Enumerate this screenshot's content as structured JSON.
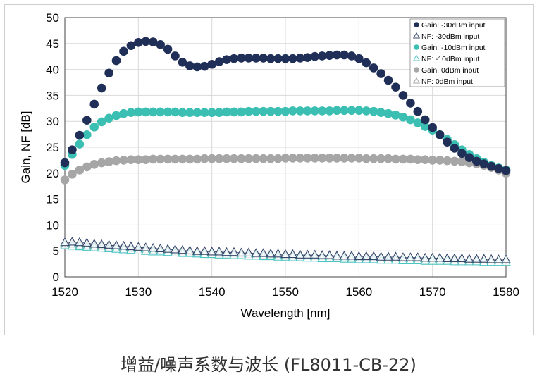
{
  "caption": "增益/噪声系数与波长 (FL8011-CB-22)",
  "chart_data": {
    "type": "scatter",
    "xlabel": "Wavelength [nm]",
    "ylabel": "Gain, NF [dB]",
    "xlim": [
      1520,
      1580
    ],
    "ylim": [
      0,
      50
    ],
    "xticks": [
      "1520",
      "1530",
      "1540",
      "1550",
      "1560",
      "1570",
      "1580"
    ],
    "yticks": [
      "0",
      "5",
      "10",
      "15",
      "20",
      "25",
      "30",
      "35",
      "40",
      "45",
      "50"
    ],
    "legend_position": "top-right",
    "series": [
      {
        "name": "Gain: -30dBm input",
        "marker": "circle",
        "color": "#1f2f57",
        "x": [
          1520,
          1521,
          1522,
          1523,
          1524,
          1525,
          1526,
          1527,
          1528,
          1529,
          1530,
          1531,
          1532,
          1533,
          1534,
          1535,
          1536,
          1537,
          1538,
          1539,
          1540,
          1541,
          1542,
          1543,
          1544,
          1545,
          1546,
          1547,
          1548,
          1549,
          1550,
          1551,
          1552,
          1553,
          1554,
          1555,
          1556,
          1557,
          1558,
          1559,
          1560,
          1561,
          1562,
          1563,
          1564,
          1565,
          1566,
          1567,
          1568,
          1569,
          1570,
          1571,
          1572,
          1573,
          1574,
          1575,
          1576,
          1577,
          1578,
          1579,
          1580
        ],
        "y": [
          22.0,
          24.5,
          27.3,
          30.2,
          33.3,
          36.4,
          39.3,
          41.7,
          43.5,
          44.6,
          45.2,
          45.4,
          45.3,
          44.8,
          43.9,
          42.6,
          41.4,
          40.7,
          40.5,
          40.6,
          41.0,
          41.5,
          41.9,
          42.1,
          42.2,
          42.2,
          42.2,
          42.2,
          42.1,
          42.1,
          42.1,
          42.1,
          42.2,
          42.3,
          42.5,
          42.6,
          42.7,
          42.8,
          42.8,
          42.6,
          42.1,
          41.3,
          40.3,
          39.2,
          37.9,
          36.6,
          35.0,
          33.5,
          31.9,
          30.3,
          28.8,
          27.4,
          26.0,
          24.8,
          23.8,
          23.0,
          22.3,
          21.8,
          21.3,
          20.9,
          20.5
        ]
      },
      {
        "name": "NF: -30dBm input",
        "marker": "triangle",
        "color": "#34466a",
        "x": [
          1520,
          1521,
          1522,
          1523,
          1524,
          1525,
          1526,
          1527,
          1528,
          1529,
          1530,
          1531,
          1532,
          1533,
          1534,
          1535,
          1536,
          1537,
          1538,
          1539,
          1540,
          1541,
          1542,
          1543,
          1544,
          1545,
          1546,
          1547,
          1548,
          1549,
          1550,
          1551,
          1552,
          1553,
          1554,
          1555,
          1556,
          1557,
          1558,
          1559,
          1560,
          1561,
          1562,
          1563,
          1564,
          1565,
          1566,
          1567,
          1568,
          1569,
          1570,
          1571,
          1572,
          1573,
          1574,
          1575,
          1576,
          1577,
          1578,
          1579,
          1580
        ],
        "y": [
          6.6,
          6.7,
          6.6,
          6.5,
          6.3,
          6.2,
          6.1,
          6.0,
          5.9,
          5.8,
          5.7,
          5.6,
          5.5,
          5.4,
          5.3,
          5.2,
          5.1,
          5.0,
          4.9,
          4.9,
          4.8,
          4.8,
          4.7,
          4.7,
          4.6,
          4.6,
          4.5,
          4.5,
          4.4,
          4.4,
          4.3,
          4.3,
          4.2,
          4.2,
          4.2,
          4.1,
          4.1,
          4.0,
          4.0,
          4.0,
          3.9,
          3.9,
          3.9,
          3.8,
          3.8,
          3.8,
          3.7,
          3.7,
          3.7,
          3.6,
          3.6,
          3.6,
          3.5,
          3.5,
          3.5,
          3.4,
          3.4,
          3.4,
          3.3,
          3.3,
          3.3
        ]
      },
      {
        "name": "Gain: -10dBm input",
        "marker": "circle",
        "color": "#3cbfb3",
        "x": [
          1520,
          1521,
          1522,
          1523,
          1524,
          1525,
          1526,
          1527,
          1528,
          1529,
          1530,
          1531,
          1532,
          1533,
          1534,
          1535,
          1536,
          1537,
          1538,
          1539,
          1540,
          1541,
          1542,
          1543,
          1544,
          1545,
          1546,
          1547,
          1548,
          1549,
          1550,
          1551,
          1552,
          1553,
          1554,
          1555,
          1556,
          1557,
          1558,
          1559,
          1560,
          1561,
          1562,
          1563,
          1564,
          1565,
          1566,
          1567,
          1568,
          1569,
          1570,
          1571,
          1572,
          1573,
          1574,
          1575,
          1576,
          1577,
          1578,
          1579,
          1580
        ],
        "y": [
          21.5,
          23.6,
          25.6,
          27.4,
          28.9,
          29.9,
          30.6,
          31.1,
          31.5,
          31.7,
          31.8,
          31.8,
          31.8,
          31.8,
          31.8,
          31.8,
          31.7,
          31.7,
          31.7,
          31.7,
          31.7,
          31.7,
          31.8,
          31.8,
          31.8,
          31.9,
          31.9,
          31.9,
          31.9,
          31.9,
          31.9,
          32.0,
          32.0,
          32.0,
          32.0,
          32.0,
          32.0,
          32.1,
          32.1,
          32.1,
          32.1,
          32.0,
          31.9,
          31.7,
          31.5,
          31.2,
          30.8,
          30.3,
          29.7,
          29.0,
          28.3,
          27.4,
          26.5,
          25.5,
          24.5,
          23.6,
          22.8,
          22.1,
          21.5,
          21.0,
          20.6
        ]
      },
      {
        "name": "NF: -10dBm input",
        "marker": "triangle",
        "color": "#4cc4c0",
        "x": [
          1520,
          1521,
          1522,
          1523,
          1524,
          1525,
          1526,
          1527,
          1528,
          1529,
          1530,
          1531,
          1532,
          1533,
          1534,
          1535,
          1536,
          1537,
          1538,
          1539,
          1540,
          1541,
          1542,
          1543,
          1544,
          1545,
          1546,
          1547,
          1548,
          1549,
          1550,
          1551,
          1552,
          1553,
          1554,
          1555,
          1556,
          1557,
          1558,
          1559,
          1560,
          1561,
          1562,
          1563,
          1564,
          1565,
          1566,
          1567,
          1568,
          1569,
          1570,
          1571,
          1572,
          1573,
          1574,
          1575,
          1576,
          1577,
          1578,
          1579,
          1580
        ],
        "y": [
          6.0,
          5.9,
          5.8,
          5.7,
          5.6,
          5.5,
          5.4,
          5.3,
          5.2,
          5.1,
          5.0,
          4.9,
          4.8,
          4.8,
          4.7,
          4.6,
          4.5,
          4.5,
          4.4,
          4.3,
          4.3,
          4.2,
          4.2,
          4.1,
          4.1,
          4.0,
          4.0,
          3.9,
          3.9,
          3.8,
          3.8,
          3.7,
          3.7,
          3.6,
          3.6,
          3.5,
          3.5,
          3.5,
          3.4,
          3.4,
          3.3,
          3.3,
          3.3,
          3.2,
          3.2,
          3.2,
          3.1,
          3.1,
          3.1,
          3.0,
          3.0,
          3.0,
          3.0,
          2.9,
          2.9,
          2.9,
          2.9,
          2.8,
          2.8,
          2.8,
          2.8
        ]
      },
      {
        "name": "Gain: 0dBm input",
        "marker": "circle",
        "color": "#a6a6a6",
        "x": [
          1520,
          1521,
          1522,
          1523,
          1524,
          1525,
          1526,
          1527,
          1528,
          1529,
          1530,
          1531,
          1532,
          1533,
          1534,
          1535,
          1536,
          1537,
          1538,
          1539,
          1540,
          1541,
          1542,
          1543,
          1544,
          1545,
          1546,
          1547,
          1548,
          1549,
          1550,
          1551,
          1552,
          1553,
          1554,
          1555,
          1556,
          1557,
          1558,
          1559,
          1560,
          1561,
          1562,
          1563,
          1564,
          1565,
          1566,
          1567,
          1568,
          1569,
          1570,
          1571,
          1572,
          1573,
          1574,
          1575,
          1576,
          1577,
          1578,
          1579,
          1580
        ],
        "y": [
          18.7,
          19.8,
          20.6,
          21.2,
          21.7,
          22.0,
          22.2,
          22.4,
          22.5,
          22.6,
          22.6,
          22.6,
          22.7,
          22.7,
          22.7,
          22.7,
          22.7,
          22.7,
          22.7,
          22.8,
          22.8,
          22.8,
          22.8,
          22.8,
          22.8,
          22.8,
          22.8,
          22.8,
          22.8,
          22.8,
          22.9,
          22.9,
          22.9,
          22.9,
          22.9,
          22.9,
          22.9,
          22.9,
          22.9,
          22.9,
          22.9,
          22.8,
          22.8,
          22.8,
          22.8,
          22.7,
          22.7,
          22.7,
          22.6,
          22.6,
          22.5,
          22.5,
          22.4,
          22.3,
          22.2,
          22.0,
          21.8,
          21.5,
          21.1,
          20.6,
          20.0
        ]
      },
      {
        "name": "NF: 0dBm input",
        "marker": "triangle",
        "color": "#a6a6a6",
        "x": [
          1520,
          1521,
          1522,
          1523,
          1524,
          1525,
          1526,
          1527,
          1528,
          1529,
          1530,
          1531,
          1532,
          1533,
          1534,
          1535,
          1536,
          1537,
          1538,
          1539,
          1540,
          1541,
          1542,
          1543,
          1544,
          1545,
          1546,
          1547,
          1548,
          1549,
          1550,
          1551,
          1552,
          1553,
          1554,
          1555,
          1556,
          1557,
          1558,
          1559,
          1560,
          1561,
          1562,
          1563,
          1564,
          1565,
          1566,
          1567,
          1568,
          1569,
          1570,
          1571,
          1572,
          1573,
          1574,
          1575,
          1576,
          1577,
          1578,
          1579,
          1580
        ],
        "y": [
          6.3,
          6.2,
          6.1,
          6.0,
          5.9,
          5.8,
          5.7,
          5.6,
          5.5,
          5.4,
          5.3,
          5.2,
          5.1,
          5.1,
          5.0,
          4.9,
          4.8,
          4.8,
          4.7,
          4.6,
          4.6,
          4.5,
          4.5,
          4.4,
          4.4,
          4.3,
          4.3,
          4.2,
          4.2,
          4.1,
          4.1,
          4.0,
          4.0,
          4.0,
          3.9,
          3.9,
          3.9,
          3.8,
          3.8,
          3.8,
          3.7,
          3.7,
          3.7,
          3.7,
          3.6,
          3.6,
          3.6,
          3.6,
          3.5,
          3.5,
          3.5,
          3.5,
          3.5,
          3.4,
          3.4,
          3.4,
          3.4,
          3.4,
          3.4,
          3.3,
          3.3
        ]
      }
    ]
  }
}
